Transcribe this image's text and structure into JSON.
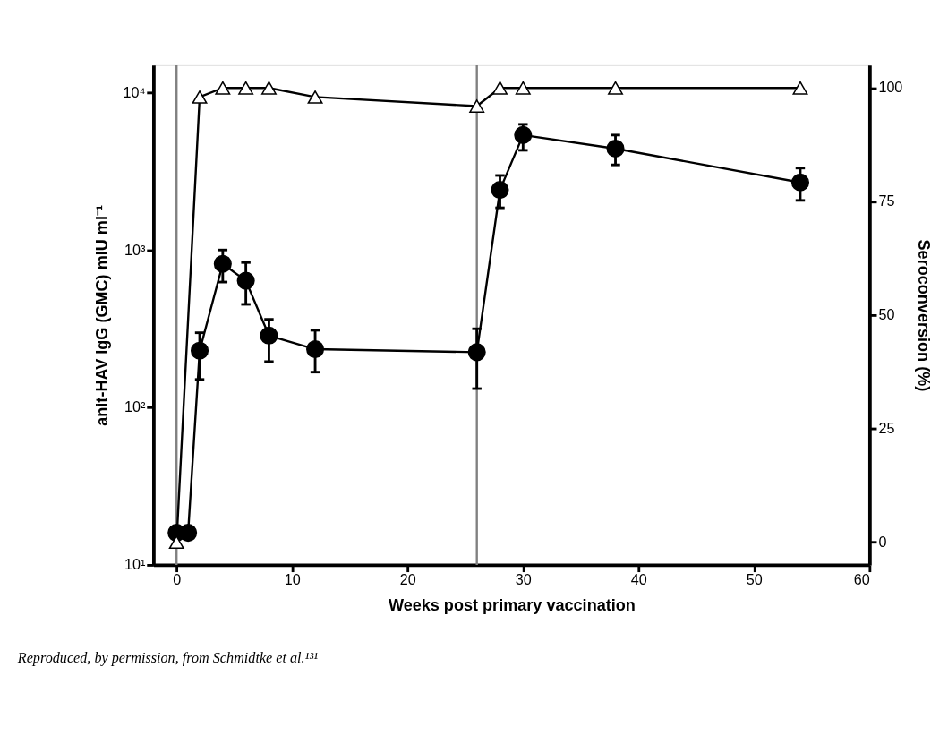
{
  "chart_data": {
    "type": "line",
    "xlabel": "Weeks post primary vaccination",
    "ylabel": "anit-HAV IgG (GMC) mIU ml⁻¹",
    "y2label": "Seroconversion (%)",
    "annotations": [
      "Reproduced, by permission, from Schmidtke et al.¹³¹"
    ],
    "x": [
      0,
      1,
      2,
      4,
      6,
      8,
      12,
      26,
      28,
      30,
      38,
      54
    ],
    "xlim": [
      -2,
      60
    ],
    "xticks": [
      0,
      10,
      20,
      30,
      40,
      50,
      60
    ],
    "ylim": [
      10,
      15000
    ],
    "yticks": [
      {
        "value": 10,
        "label": "10¹"
      },
      {
        "value": 100,
        "label": "10²"
      },
      {
        "value": 1000,
        "label": "10³"
      },
      {
        "value": 10000,
        "label": "10⁴"
      }
    ],
    "y2lim": [
      -5,
      105
    ],
    "y2ticks": [
      0,
      25,
      50,
      75,
      100
    ],
    "log": "y",
    "grid": false,
    "line_style": "solid",
    "ref_lines": [
      {
        "axis": "x",
        "value": 0,
        "color": "#808080"
      },
      {
        "axis": "x",
        "value": 26,
        "color": "#808080"
      }
    ],
    "series": [
      {
        "color": "#000000",
        "marker": "circle",
        "values": [
          16,
          16,
          230,
          820,
          640,
          287,
          235,
          225,
          2420,
          5400,
          4430,
          2700
        ],
        "errors": [
          null,
          null,
          [
            151,
            299
          ],
          [
            628,
            1004
          ],
          [
            453,
            836
          ],
          [
            196,
            364
          ],
          [
            168,
            310
          ],
          [
            132,
            317
          ],
          [
            1862,
            2990
          ],
          [
            4320,
            6320
          ],
          [
            3490,
            5400
          ],
          [
            2075,
            3330
          ]
        ]
      },
      {
        "color": "#ffffff",
        "marker": "triangle",
        "axis": "y2",
        "x": [
          0,
          2,
          4,
          6,
          8,
          12,
          26,
          28,
          30,
          38,
          54
        ],
        "values": [
          0,
          98,
          100,
          100,
          100,
          98,
          96,
          100,
          100,
          100,
          100
        ]
      }
    ]
  }
}
